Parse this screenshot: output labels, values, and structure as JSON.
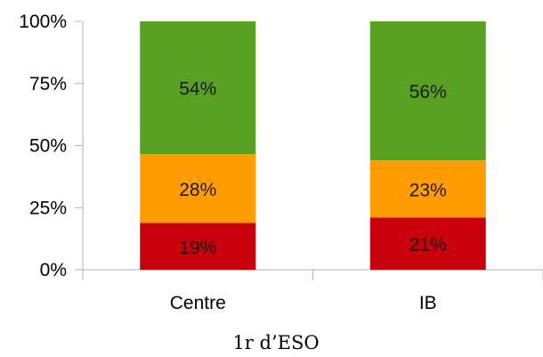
{
  "chart_data": {
    "type": "bar",
    "stacked": true,
    "categories": [
      "Centre",
      "IB"
    ],
    "series": [
      {
        "values": [
          19,
          21
        ],
        "labels": [
          "19%",
          "21%"
        ],
        "color": "#c9000b"
      },
      {
        "values": [
          28,
          23
        ],
        "labels": [
          "28%",
          "23%"
        ],
        "color": "#ff9d00"
      },
      {
        "values": [
          54,
          56
        ],
        "labels": [
          "54%",
          "56%"
        ],
        "color": "#58a021"
      }
    ],
    "xlabel": "1r d’ESO",
    "ylabel": "",
    "ylim": [
      0,
      100
    ],
    "yticks": [
      0,
      25,
      50,
      75,
      100
    ],
    "ytick_labels": [
      "0%",
      "25%",
      "50%",
      "75%",
      "100%"
    ],
    "grid": false,
    "legend": "none",
    "colors": {
      "axis": "#b3b3b3",
      "text": "#000000"
    }
  }
}
